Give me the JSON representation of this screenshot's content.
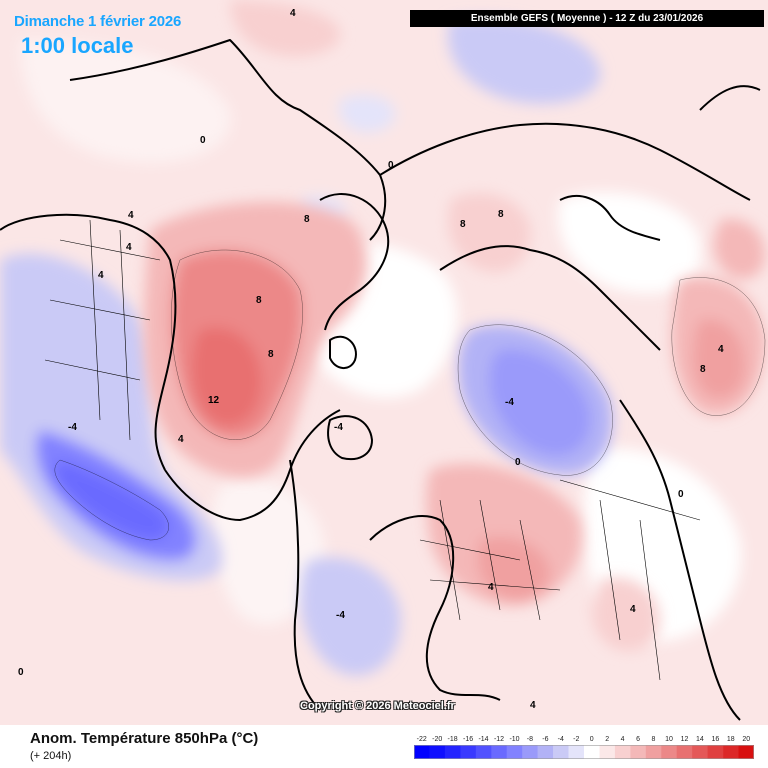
{
  "header": {
    "date_line": "Dimanche 1 février 2026",
    "time_line": "1:00 locale",
    "run_banner": "Ensemble GEFS  ( Moyenne )  -  12 Z du 23/01/2026"
  },
  "footer": {
    "parameter_title": "Anom. Température 850hPa (°C)",
    "lead_time": "(+ 204h)",
    "copyright": "Copyright © 2026 Meteociel.fr"
  },
  "legend": {
    "unit": "°C",
    "bins": [
      {
        "label": "-22",
        "color": "#0000ff"
      },
      {
        "label": "-20",
        "color": "#1010ff"
      },
      {
        "label": "-18",
        "color": "#2424ff"
      },
      {
        "label": "-16",
        "color": "#3a3aff"
      },
      {
        "label": "-14",
        "color": "#5252ff"
      },
      {
        "label": "-12",
        "color": "#6a6aff"
      },
      {
        "label": "-10",
        "color": "#8282ff"
      },
      {
        "label": "-8",
        "color": "#9a9afa"
      },
      {
        "label": "-6",
        "color": "#b2b2f6"
      },
      {
        "label": "-4",
        "color": "#cacaf6"
      },
      {
        "label": "-2",
        "color": "#e4e4fa"
      },
      {
        "label": "0",
        "color": "#ffffff"
      },
      {
        "label": "2",
        "color": "#fbe8e8"
      },
      {
        "label": "4",
        "color": "#f8d0d0"
      },
      {
        "label": "6",
        "color": "#f4b8b8"
      },
      {
        "label": "8",
        "color": "#f0a0a0"
      },
      {
        "label": "10",
        "color": "#ec8888"
      },
      {
        "label": "12",
        "color": "#e87070"
      },
      {
        "label": "14",
        "color": "#e45858"
      },
      {
        "label": "16",
        "color": "#e04040"
      },
      {
        "label": "18",
        "color": "#dc2828"
      },
      {
        "label": "20",
        "color": "#d81010"
      }
    ]
  },
  "map": {
    "contour_labels": [
      {
        "text": "4"
      },
      {
        "text": "4"
      },
      {
        "text": "4"
      },
      {
        "text": "8"
      },
      {
        "text": "8"
      },
      {
        "text": "12"
      },
      {
        "text": "8"
      },
      {
        "text": "4"
      },
      {
        "text": "0"
      },
      {
        "text": "0"
      },
      {
        "text": "-4"
      },
      {
        "text": "-4"
      },
      {
        "text": "-4"
      },
      {
        "text": "-4"
      },
      {
        "text": "4"
      },
      {
        "text": "8"
      },
      {
        "text": "8"
      },
      {
        "text": "4"
      },
      {
        "text": "4"
      },
      {
        "text": "8"
      },
      {
        "text": "0"
      },
      {
        "text": "0"
      },
      {
        "text": "4"
      },
      {
        "text": "4"
      },
      {
        "text": "0"
      }
    ]
  }
}
